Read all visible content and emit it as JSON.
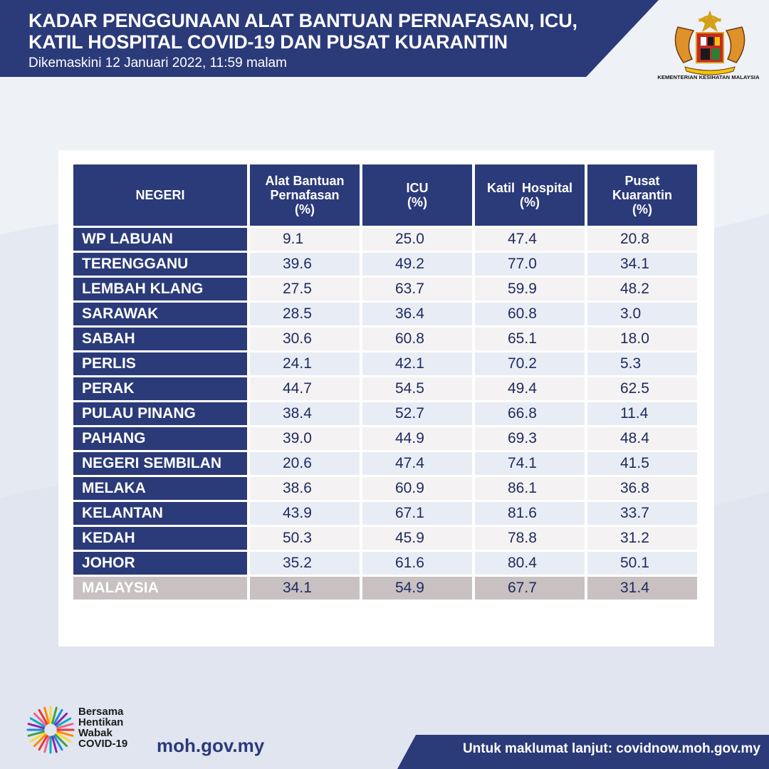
{
  "header": {
    "title_line1": "KADAR PENGGUNAAN ALAT BANTUAN PERNAFASAN, ICU,",
    "title_line2": "KATIL HOSPITAL COVID-19 DAN PUSAT KUARANTIN",
    "updated": "Dikemaskini  12 Januari 2022, 11:59 malam",
    "logo_caption": "KEMENTERIAN KESIHATAN MALAYSIA"
  },
  "table": {
    "headers": {
      "state": "NEGERI",
      "ventilator": [
        "Alat Bantuan",
        "Pernafasan",
        "(%)"
      ],
      "icu": [
        "ICU",
        "(%)"
      ],
      "hospital": [
        "Katil  Hospital",
        "(%)"
      ],
      "quarantine": [
        "Pusat",
        "Kuarantin",
        "(%)"
      ]
    },
    "rows": [
      {
        "state": "WP LABUAN",
        "ventilator": "9.1",
        "icu": "25.0",
        "hospital": "47.4",
        "quarantine": "20.8"
      },
      {
        "state": "TERENGGANU",
        "ventilator": "39.6",
        "icu": "49.2",
        "hospital": "77.0",
        "quarantine": "34.1"
      },
      {
        "state": "LEMBAH KLANG",
        "ventilator": "27.5",
        "icu": "63.7",
        "hospital": "59.9",
        "quarantine": "48.2"
      },
      {
        "state": "SARAWAK",
        "ventilator": "28.5",
        "icu": "36.4",
        "hospital": "60.8",
        "quarantine": "3.0"
      },
      {
        "state": "SABAH",
        "ventilator": "30.6",
        "icu": "60.8",
        "hospital": "65.1",
        "quarantine": "18.0"
      },
      {
        "state": "PERLIS",
        "ventilator": "24.1",
        "icu": "42.1",
        "hospital": "70.2",
        "quarantine": "5.3"
      },
      {
        "state": "PERAK",
        "ventilator": "44.7",
        "icu": "54.5",
        "hospital": "49.4",
        "quarantine": "62.5"
      },
      {
        "state": "PULAU PINANG",
        "ventilator": "38.4",
        "icu": "52.7",
        "hospital": "66.8",
        "quarantine": "11.4"
      },
      {
        "state": "PAHANG",
        "ventilator": "39.0",
        "icu": "44.9",
        "hospital": "69.3",
        "quarantine": "48.4"
      },
      {
        "state": "NEGERI SEMBILAN",
        "ventilator": "20.6",
        "icu": "47.4",
        "hospital": "74.1",
        "quarantine": "41.5"
      },
      {
        "state": "MELAKA",
        "ventilator": "38.6",
        "icu": "60.9",
        "hospital": "86.1",
        "quarantine": "36.8"
      },
      {
        "state": "KELANTAN",
        "ventilator": "43.9",
        "icu": "67.1",
        "hospital": "81.6",
        "quarantine": "33.7"
      },
      {
        "state": "KEDAH",
        "ventilator": "50.3",
        "icu": "45.9",
        "hospital": "78.8",
        "quarantine": "31.2"
      },
      {
        "state": "JOHOR",
        "ventilator": "35.2",
        "icu": "61.6",
        "hospital": "80.4",
        "quarantine": "50.1"
      }
    ],
    "total": {
      "state": "MALAYSIA",
      "ventilator": "34.1",
      "icu": "54.9",
      "hospital": "67.7",
      "quarantine": "31.4"
    }
  },
  "footer": {
    "campaign": [
      "Bersama",
      "Hentikan",
      "Wabak",
      "COVID-19"
    ],
    "site": "moh.gov.my",
    "more_info": "Untuk maklumat lanjut: covidnow.moh.gov.my"
  },
  "colors": {
    "navy": "#2b3a79",
    "background": "#eef1f6",
    "total_row": "#c8c0c1"
  },
  "icons": [
    "coat-of-arms-logo",
    "covid-campaign-logo"
  ]
}
